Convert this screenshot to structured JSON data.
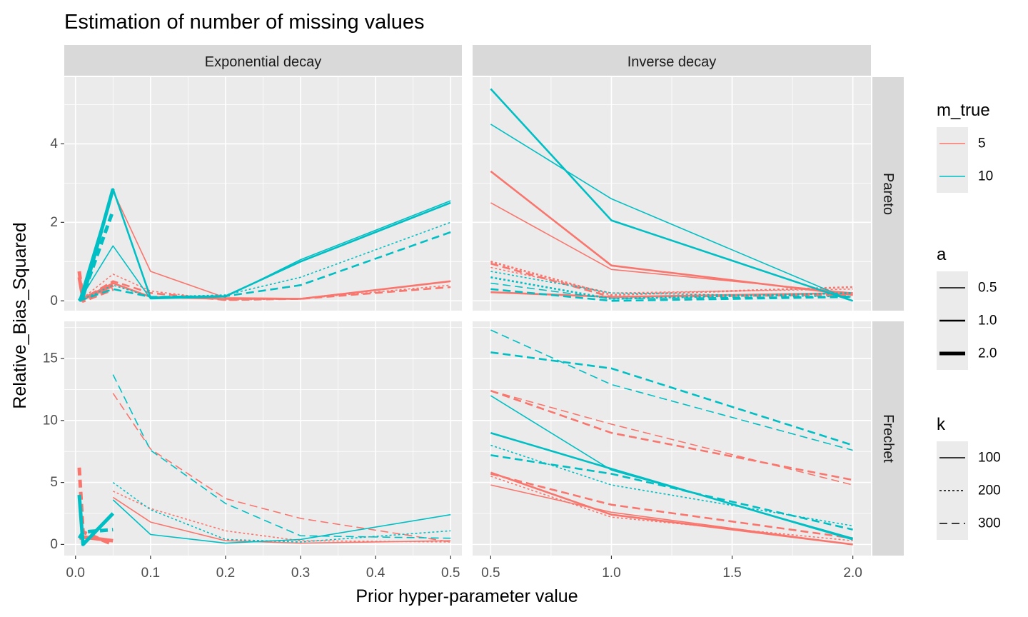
{
  "chart_data": {
    "type": "line",
    "title": "Estimation of number of missing values",
    "xlabel": "Prior hyper-parameter value",
    "ylabel": "Relative_Bias_Squared",
    "grid": true,
    "legend_placement": "right",
    "columns": [
      "Exponential decay",
      "Inverse decay"
    ],
    "rows": [
      "Pareto",
      "Frechet"
    ],
    "colors": {
      "5": "#F8766D",
      "10": "#00BFC4"
    },
    "x_axes": {
      "Exponential decay": {
        "xlim": [
          -0.015,
          0.515
        ],
        "ticks": [
          0.0,
          0.1,
          0.2,
          0.3,
          0.4,
          0.5
        ],
        "tick_labels": [
          "0.0",
          "0.1",
          "0.2",
          "0.3",
          "0.4",
          "0.5"
        ]
      },
      "Inverse decay": {
        "xlim": [
          0.425,
          2.075
        ],
        "ticks": [
          0.5,
          1.0,
          1.5,
          2.0
        ],
        "tick_labels": [
          "0.5",
          "1.0",
          "1.5",
          "2.0"
        ]
      }
    },
    "y_axes": {
      "Pareto": {
        "ylim": [
          -0.25,
          5.7
        ],
        "ticks": [
          0,
          2,
          4
        ],
        "tick_labels": [
          "0",
          "2",
          "4"
        ]
      },
      "Frechet": {
        "ylim": [
          -0.9,
          18.0
        ],
        "ticks": [
          0,
          5,
          10,
          15
        ],
        "tick_labels": [
          "0",
          "5",
          "10",
          "15"
        ]
      }
    },
    "legends": [
      {
        "title": "m_true",
        "type": "color",
        "entries": [
          {
            "label": "5",
            "key": "5"
          },
          {
            "label": "10",
            "key": "10"
          }
        ]
      },
      {
        "title": "a",
        "type": "size",
        "entries": [
          {
            "label": "0.5",
            "key": "0.5"
          },
          {
            "label": "1.0",
            "key": "1.0"
          },
          {
            "label": "2.0",
            "key": "2.0"
          }
        ]
      },
      {
        "title": "k",
        "type": "linetype",
        "entries": [
          {
            "label": "100",
            "key": "100"
          },
          {
            "label": "200",
            "key": "200"
          },
          {
            "label": "300",
            "key": "300"
          }
        ]
      }
    ],
    "panels": [
      {
        "row": "Pareto",
        "col": "Exponential decay",
        "series": [
          {
            "m_true": "5",
            "a": "0.5",
            "k": "100",
            "x": [
              0.005,
              0.05,
              0.1,
              0.2,
              0.3,
              0.5
            ],
            "y": [
              0.0,
              2.8,
              0.75,
              0.08,
              0.06,
              0.5
            ]
          },
          {
            "m_true": "5",
            "a": "1.0",
            "k": "100",
            "x": [
              0.005,
              0.05,
              0.1,
              0.2,
              0.3,
              0.5
            ],
            "y": [
              0.0,
              0.45,
              0.1,
              0.05,
              0.05,
              0.5
            ]
          },
          {
            "m_true": "5",
            "a": "2.0",
            "k": "100",
            "x": [
              0.005,
              0.01,
              0.05
            ],
            "y": [
              0.6,
              0.05,
              0.4
            ]
          },
          {
            "m_true": "5",
            "a": "0.5",
            "k": "200",
            "x": [
              0.005,
              0.05,
              0.1,
              0.2,
              0.3,
              0.5
            ],
            "y": [
              0.0,
              0.68,
              0.25,
              0.02,
              0.05,
              0.4
            ]
          },
          {
            "m_true": "5",
            "a": "1.0",
            "k": "300",
            "x": [
              0.005,
              0.05,
              0.1,
              0.2,
              0.3,
              0.5
            ],
            "y": [
              0.0,
              0.5,
              0.2,
              0.02,
              0.05,
              0.35
            ]
          },
          {
            "m_true": "5",
            "a": "2.0",
            "k": "300",
            "x": [
              0.005,
              0.01,
              0.05
            ],
            "y": [
              0.75,
              0.0,
              0.3
            ]
          },
          {
            "m_true": "10",
            "a": "0.5",
            "k": "100",
            "x": [
              0.005,
              0.05,
              0.1,
              0.2,
              0.3,
              0.5
            ],
            "y": [
              0.0,
              1.4,
              0.05,
              0.1,
              1.05,
              2.55
            ]
          },
          {
            "m_true": "10",
            "a": "1.0",
            "k": "100",
            "x": [
              0.005,
              0.05,
              0.1,
              0.2,
              0.3,
              0.5
            ],
            "y": [
              0.0,
              2.85,
              0.08,
              0.12,
              1.0,
              2.5
            ]
          },
          {
            "m_true": "10",
            "a": "2.0",
            "k": "100",
            "x": [
              0.005,
              0.01,
              0.05
            ],
            "y": [
              0.0,
              0.1,
              2.85
            ]
          },
          {
            "m_true": "10",
            "a": "0.5",
            "k": "200",
            "x": [
              0.005,
              0.05,
              0.1,
              0.2,
              0.3,
              0.5
            ],
            "y": [
              0.0,
              0.4,
              0.1,
              0.15,
              0.6,
              2.0
            ]
          },
          {
            "m_true": "10",
            "a": "1.0",
            "k": "300",
            "x": [
              0.005,
              0.05,
              0.1,
              0.2,
              0.3,
              0.5
            ],
            "y": [
              0.0,
              0.3,
              0.1,
              0.12,
              0.4,
              1.75
            ]
          },
          {
            "m_true": "10",
            "a": "2.0",
            "k": "300",
            "x": [
              0.005,
              0.01,
              0.05
            ],
            "y": [
              0.0,
              0.15,
              2.3
            ]
          }
        ]
      },
      {
        "row": "Pareto",
        "col": "Inverse decay",
        "series": [
          {
            "m_true": "5",
            "a": "0.5",
            "k": "100",
            "x": [
              0.5,
              1.0,
              2.0
            ],
            "y": [
              2.5,
              0.8,
              0.2
            ]
          },
          {
            "m_true": "5",
            "a": "1.0",
            "k": "100",
            "x": [
              0.5,
              1.0,
              2.0
            ],
            "y": [
              3.3,
              0.9,
              0.15
            ]
          },
          {
            "m_true": "5",
            "a": "1.0",
            "k": "100",
            "x": [
              0.5,
              1.0,
              2.0
            ],
            "y": [
              0.22,
              0.1,
              0.2
            ]
          },
          {
            "m_true": "5",
            "a": "0.5",
            "k": "200",
            "x": [
              0.5,
              1.0,
              2.0
            ],
            "y": [
              0.85,
              0.2,
              0.3
            ]
          },
          {
            "m_true": "5",
            "a": "1.0",
            "k": "200",
            "x": [
              0.5,
              1.0,
              2.0
            ],
            "y": [
              1.0,
              0.15,
              0.35
            ]
          },
          {
            "m_true": "5",
            "a": "1.0",
            "k": "300",
            "x": [
              0.5,
              1.0,
              2.0
            ],
            "y": [
              0.95,
              0.1,
              0.15
            ]
          },
          {
            "m_true": "10",
            "a": "0.5",
            "k": "100",
            "x": [
              0.5,
              1.0,
              2.0
            ],
            "y": [
              4.5,
              2.6,
              0.0
            ]
          },
          {
            "m_true": "10",
            "a": "1.0",
            "k": "100",
            "x": [
              0.5,
              1.0,
              2.0
            ],
            "y": [
              5.4,
              2.05,
              0.0
            ]
          },
          {
            "m_true": "10",
            "a": "0.5",
            "k": "200",
            "x": [
              0.5,
              1.0,
              2.0
            ],
            "y": [
              0.75,
              0.2,
              0.1
            ]
          },
          {
            "m_true": "10",
            "a": "1.0",
            "k": "200",
            "x": [
              0.5,
              1.0,
              2.0
            ],
            "y": [
              0.6,
              0.05,
              0.2
            ]
          },
          {
            "m_true": "10",
            "a": "1.0",
            "k": "300",
            "x": [
              0.5,
              1.0,
              2.0
            ],
            "y": [
              0.3,
              0.0,
              0.1
            ]
          },
          {
            "m_true": "10",
            "a": "0.5",
            "k": "300",
            "x": [
              0.5,
              1.0,
              2.0
            ],
            "y": [
              0.45,
              0.05,
              0.12
            ]
          }
        ]
      },
      {
        "row": "Frechet",
        "col": "Exponential decay",
        "series": [
          {
            "m_true": "5",
            "a": "0.5",
            "k": "100",
            "x": [
              0.05,
              0.1,
              0.2,
              0.3,
              0.5
            ],
            "y": [
              3.8,
              1.8,
              0.3,
              0.1,
              0.3
            ]
          },
          {
            "m_true": "5",
            "a": "2.0",
            "k": "100",
            "x": [
              0.005,
              0.01,
              0.05
            ],
            "y": [
              0.5,
              0.6,
              0.3
            ]
          },
          {
            "m_true": "5",
            "a": "0.5",
            "k": "200",
            "x": [
              0.05,
              0.1,
              0.2,
              0.3,
              0.5
            ],
            "y": [
              4.3,
              2.9,
              1.1,
              0.3,
              0.2
            ]
          },
          {
            "m_true": "5",
            "a": "0.5",
            "k": "300",
            "x": [
              0.05,
              0.1,
              0.2,
              0.3,
              0.5
            ],
            "y": [
              12.2,
              7.7,
              3.7,
              2.1,
              0.2
            ]
          },
          {
            "m_true": "5",
            "a": "2.0",
            "k": "300",
            "x": [
              0.005,
              0.01,
              0.05
            ],
            "y": [
              6.2,
              1.0,
              0.0
            ]
          },
          {
            "m_true": "10",
            "a": "0.5",
            "k": "100",
            "x": [
              0.05,
              0.1,
              0.2,
              0.3,
              0.5
            ],
            "y": [
              3.6,
              0.8,
              0.1,
              0.4,
              2.4
            ]
          },
          {
            "m_true": "10",
            "a": "2.0",
            "k": "100",
            "x": [
              0.005,
              0.01,
              0.05
            ],
            "y": [
              4.0,
              0.0,
              2.5
            ]
          },
          {
            "m_true": "10",
            "a": "0.5",
            "k": "200",
            "x": [
              0.05,
              0.1,
              0.2,
              0.3,
              0.5
            ],
            "y": [
              5.0,
              2.8,
              0.4,
              0.2,
              1.1
            ]
          },
          {
            "m_true": "10",
            "a": "0.5",
            "k": "300",
            "x": [
              0.05,
              0.1,
              0.2,
              0.3,
              0.5
            ],
            "y": [
              13.7,
              7.6,
              3.3,
              0.7,
              0.5
            ]
          },
          {
            "m_true": "10",
            "a": "2.0",
            "k": "300",
            "x": [
              0.005,
              0.01,
              0.05
            ],
            "y": [
              0.5,
              1.0,
              1.2
            ]
          }
        ]
      },
      {
        "row": "Frechet",
        "col": "Inverse decay",
        "series": [
          {
            "m_true": "5",
            "a": "0.5",
            "k": "100",
            "x": [
              0.5,
              1.0,
              2.0
            ],
            "y": [
              4.8,
              2.6,
              0.0
            ]
          },
          {
            "m_true": "5",
            "a": "1.0",
            "k": "100",
            "x": [
              0.5,
              1.0,
              2.0
            ],
            "y": [
              5.8,
              2.4,
              0.0
            ]
          },
          {
            "m_true": "5",
            "a": "0.5",
            "k": "200",
            "x": [
              0.5,
              1.0,
              2.0
            ],
            "y": [
              5.5,
              2.2,
              0.3
            ]
          },
          {
            "m_true": "5",
            "a": "1.0",
            "k": "300",
            "x": [
              0.5,
              1.0,
              2.0
            ],
            "y": [
              5.7,
              3.2,
              0.5
            ]
          },
          {
            "m_true": "5",
            "a": "0.5",
            "k": "300",
            "x": [
              0.5,
              1.0,
              2.0
            ],
            "y": [
              12.4,
              9.7,
              4.8
            ]
          },
          {
            "m_true": "5",
            "a": "1.0",
            "k": "300",
            "x": [
              0.5,
              1.0,
              2.0
            ],
            "y": [
              12.4,
              9.0,
              5.2
            ]
          },
          {
            "m_true": "10",
            "a": "0.5",
            "k": "100",
            "x": [
              0.5,
              1.0,
              2.0
            ],
            "y": [
              12.0,
              6.0,
              0.5
            ]
          },
          {
            "m_true": "10",
            "a": "1.0",
            "k": "100",
            "x": [
              0.5,
              1.0,
              2.0
            ],
            "y": [
              9.0,
              6.1,
              0.4
            ]
          },
          {
            "m_true": "10",
            "a": "0.5",
            "k": "200",
            "x": [
              0.5,
              1.0,
              2.0
            ],
            "y": [
              8.0,
              4.8,
              1.5
            ]
          },
          {
            "m_true": "10",
            "a": "1.0",
            "k": "300",
            "x": [
              0.5,
              1.0,
              2.0
            ],
            "y": [
              7.2,
              5.7,
              1.2
            ]
          },
          {
            "m_true": "10",
            "a": "0.5",
            "k": "300",
            "x": [
              0.5,
              1.0,
              2.0
            ],
            "y": [
              17.3,
              12.9,
              7.6
            ]
          },
          {
            "m_true": "10",
            "a": "1.0",
            "k": "300",
            "x": [
              0.5,
              1.0,
              2.0
            ],
            "y": [
              15.5,
              14.2,
              8.0
            ]
          }
        ]
      }
    ]
  }
}
